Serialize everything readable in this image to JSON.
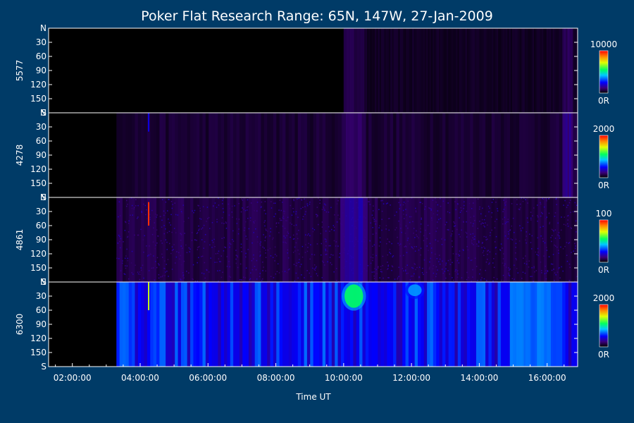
{
  "chart_data": {
    "type": "heatmap",
    "title": "Poker Flat Research Range: 65N, 147W, 27-Jan-2009",
    "xlabel": "Time UT",
    "x_ticks": [
      "02:00:00",
      "04:00:00",
      "06:00:00",
      "08:00:00",
      "10:00:00",
      "12:00:00",
      "14:00:00",
      "16:00:00"
    ],
    "x_tick_hours": [
      2,
      4,
      6,
      8,
      10,
      12,
      14,
      16
    ],
    "xlim_hours": [
      1.3,
      16.9
    ],
    "y_ticks": [
      "N",
      "30",
      "60",
      "90",
      "120",
      "150",
      "S"
    ],
    "y_tick_values": [
      0,
      30,
      60,
      90,
      120,
      150,
      180
    ],
    "ylim": [
      0,
      180
    ],
    "colormap": "rainbow",
    "colors": {
      "background": "#003b67",
      "plot_background": "#000000",
      "axis": "#ffffff"
    },
    "panels": [
      {
        "wavelength": "5577",
        "colorbar_max": "10000",
        "colorbar_min": "0R",
        "data_start_hour": 10.0,
        "base_level": 0.04,
        "features": [
          {
            "kind": "column",
            "hour": 10.3,
            "width_hours": 0.6,
            "intensity": 0.08
          },
          {
            "kind": "edge",
            "hour": 16.6,
            "width_hours": 0.3,
            "intensity": 0.09
          }
        ]
      },
      {
        "wavelength": "4278",
        "colorbar_max": "2000",
        "colorbar_min": "0R",
        "data_start_hour": 3.3,
        "base_level": 0.06,
        "features": [
          {
            "kind": "spike",
            "hour": 4.25,
            "from": 0,
            "to": 40,
            "intensity": 0.22
          },
          {
            "kind": "column",
            "hour": 10.3,
            "width_hours": 0.7,
            "intensity": 0.1
          },
          {
            "kind": "edge",
            "hour": 16.6,
            "width_hours": 0.3,
            "intensity": 0.14
          }
        ]
      },
      {
        "wavelength": "4861",
        "colorbar_max": "100",
        "colorbar_min": "0R",
        "data_start_hour": 3.3,
        "base_level": 0.08,
        "noisy": true,
        "features": [
          {
            "kind": "spike",
            "hour": 4.25,
            "from": 10,
            "to": 60,
            "intensity": 0.95
          },
          {
            "kind": "column",
            "hour": 10.3,
            "width_hours": 0.8,
            "intensity": 0.16
          }
        ]
      },
      {
        "wavelength": "6300",
        "colorbar_max": "2000",
        "colorbar_min": "0R",
        "data_start_hour": 3.3,
        "base_level": 0.3,
        "features": [
          {
            "kind": "spike",
            "hour": 4.25,
            "from": 0,
            "to": 60,
            "intensity": 0.7
          },
          {
            "kind": "blob",
            "hour": 10.3,
            "width_hours": 0.55,
            "from": 5,
            "to": 55,
            "intensity": 0.55
          },
          {
            "kind": "blob",
            "hour": 12.1,
            "width_hours": 0.4,
            "from": 5,
            "to": 30,
            "intensity": 0.38
          },
          {
            "kind": "column",
            "hour": 15.5,
            "width_hours": 1.2,
            "intensity": 0.36
          }
        ]
      }
    ]
  }
}
